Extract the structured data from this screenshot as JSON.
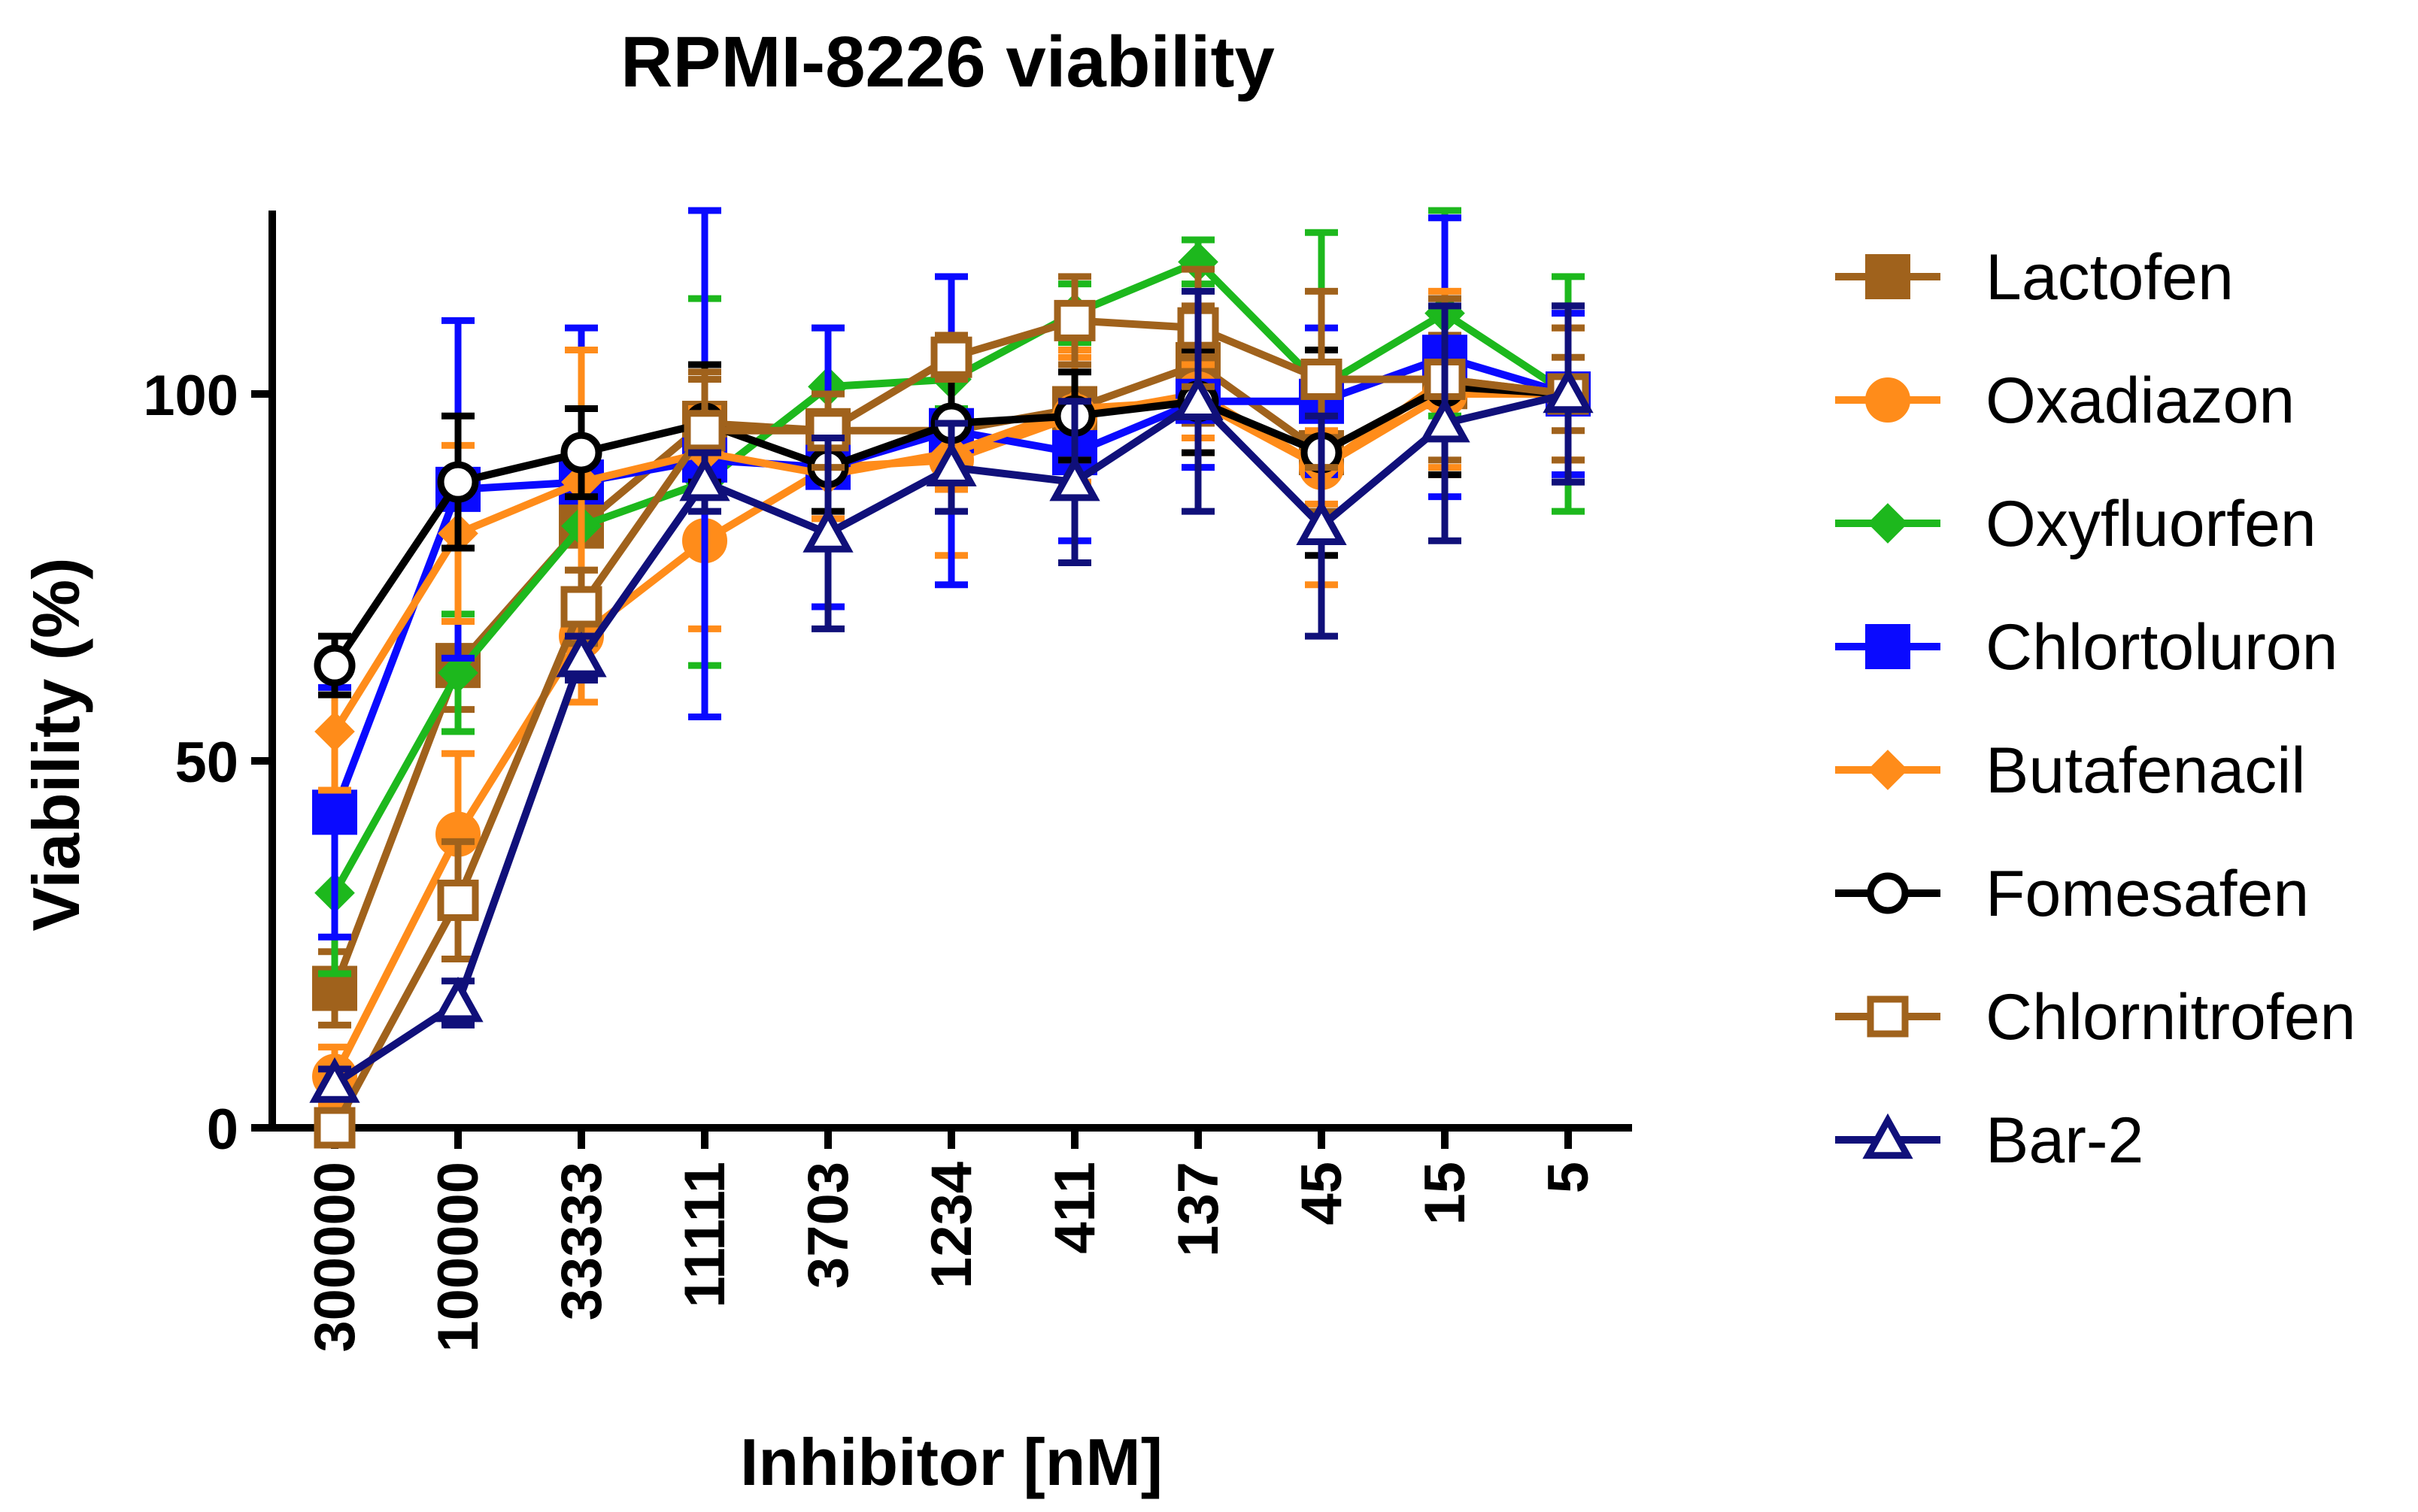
{
  "chart_data": {
    "type": "line",
    "title": "RPMI-8226 viability",
    "xlabel": "Inhibitor [nM]",
    "ylabel": "Viability (%)",
    "categories": [
      "300000",
      "100000",
      "33333",
      "11111",
      "3703",
      "1234",
      "411",
      "137",
      "45",
      "15",
      "5"
    ],
    "ylim": [
      0,
      125
    ],
    "yticks": [
      0,
      50,
      100
    ],
    "grid": false,
    "legend_position": "right",
    "series": [
      {
        "name": "Lactofen",
        "color": "#a0621c",
        "marker": "square-filled",
        "values": [
          19,
          63,
          82,
          96,
          95,
          95,
          98,
          104,
          92,
          101,
          100
        ],
        "errors": [
          5,
          6,
          9,
          6,
          5,
          8,
          6,
          8,
          8,
          7,
          5
        ]
      },
      {
        "name": "Oxadiazon",
        "color": "#ff8c1a",
        "marker": "circle-filled",
        "values": [
          7,
          40,
          67,
          80,
          90,
          91,
          97,
          100,
          90,
          100,
          100
        ],
        "errors": [
          4,
          11,
          9,
          12,
          10,
          13,
          9,
          8,
          16,
          11,
          9
        ]
      },
      {
        "name": "Oxyfluorfen",
        "color": "#1db81d",
        "marker": "diamond-filled",
        "values": [
          32,
          62,
          82,
          88,
          101,
          102,
          111,
          118,
          101,
          111,
          100
        ],
        "errors": [
          11,
          8,
          9,
          25,
          8,
          4,
          4,
          3,
          21,
          14,
          16
        ]
      },
      {
        "name": "Chlortoluron",
        "color": "#0a0aff",
        "marker": "square-filled",
        "values": [
          43,
          87,
          88,
          91,
          90,
          95,
          92,
          99,
          99,
          105,
          100
        ],
        "errors": [
          17,
          23,
          21,
          35,
          19,
          21,
          12,
          9,
          10,
          19,
          11
        ]
      },
      {
        "name": "Butafenacil",
        "color": "#ff8c1a",
        "marker": "diamond-filled",
        "values": [
          54,
          81,
          88,
          92,
          89,
          92,
          98,
          99,
          90,
          102,
          100
        ],
        "errors": [
          8,
          12,
          18,
          6,
          6,
          5,
          7,
          5,
          5,
          12,
          9
        ]
      },
      {
        "name": "Fomesafen",
        "color": "#000000",
        "marker": "circle-open",
        "values": [
          63,
          88,
          92,
          96,
          90,
          96,
          97,
          99,
          92,
          101,
          100
        ],
        "errors": [
          4,
          9,
          6,
          8,
          6,
          7,
          6,
          7,
          14,
          12,
          12
        ]
      },
      {
        "name": "Chlornitrofen",
        "color": "#a0621c",
        "marker": "square-open",
        "values": [
          0,
          31,
          71,
          95,
          95,
          105,
          110,
          109,
          102,
          102,
          100
        ],
        "errors": [
          2,
          8,
          5,
          8,
          5,
          3,
          6,
          8,
          12,
          11,
          9
        ]
      },
      {
        "name": "Bar-2",
        "color": "#10107a",
        "marker": "triangle-open",
        "values": [
          6,
          17,
          64,
          88,
          81,
          90,
          88,
          99,
          82,
          96,
          100
        ],
        "errors": [
          2,
          3,
          3,
          4,
          13,
          6,
          11,
          15,
          15,
          16,
          12
        ]
      }
    ]
  }
}
